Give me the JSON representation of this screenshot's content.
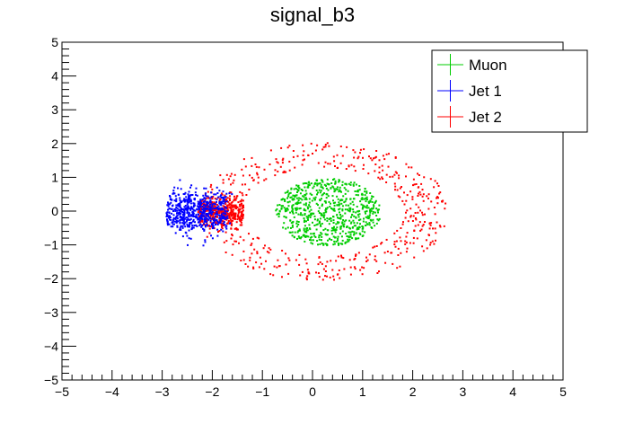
{
  "chart_data": {
    "type": "scatter",
    "title": "signal_b3",
    "xlabel": "",
    "ylabel": "",
    "xlim": [
      -5,
      5
    ],
    "ylim": [
      -5,
      5
    ],
    "xticks": [
      -5,
      -4,
      -3,
      -2,
      -1,
      0,
      1,
      2,
      3,
      4,
      5
    ],
    "yticks": [
      -5,
      -4,
      -3,
      -2,
      -1,
      0,
      1,
      2,
      3,
      4,
      5
    ],
    "grid": false,
    "legend_position": "top-right",
    "series": [
      {
        "name": "Muon",
        "color": "#00cc00",
        "shape": "filled disk",
        "center": [
          0.3,
          0.0
        ],
        "radius": [
          0.0,
          1.0
        ],
        "y_range": [
          -1.1,
          1.1
        ],
        "point_count": 700
      },
      {
        "name": "Jet 1",
        "color": "#0000ff",
        "shape": "crescent (left side of ring)",
        "center": [
          0.0,
          0.0
        ],
        "radius": [
          1.8,
          3.1
        ],
        "angle_deg": [
          120,
          240
        ],
        "point_count": 600
      },
      {
        "name": "Jet 2",
        "color": "#ff0000",
        "shape": "ring",
        "center": [
          0.2,
          0.0
        ],
        "radius": [
          1.6,
          2.5
        ],
        "angle_deg": [
          0,
          360
        ],
        "point_count": 900
      }
    ]
  }
}
